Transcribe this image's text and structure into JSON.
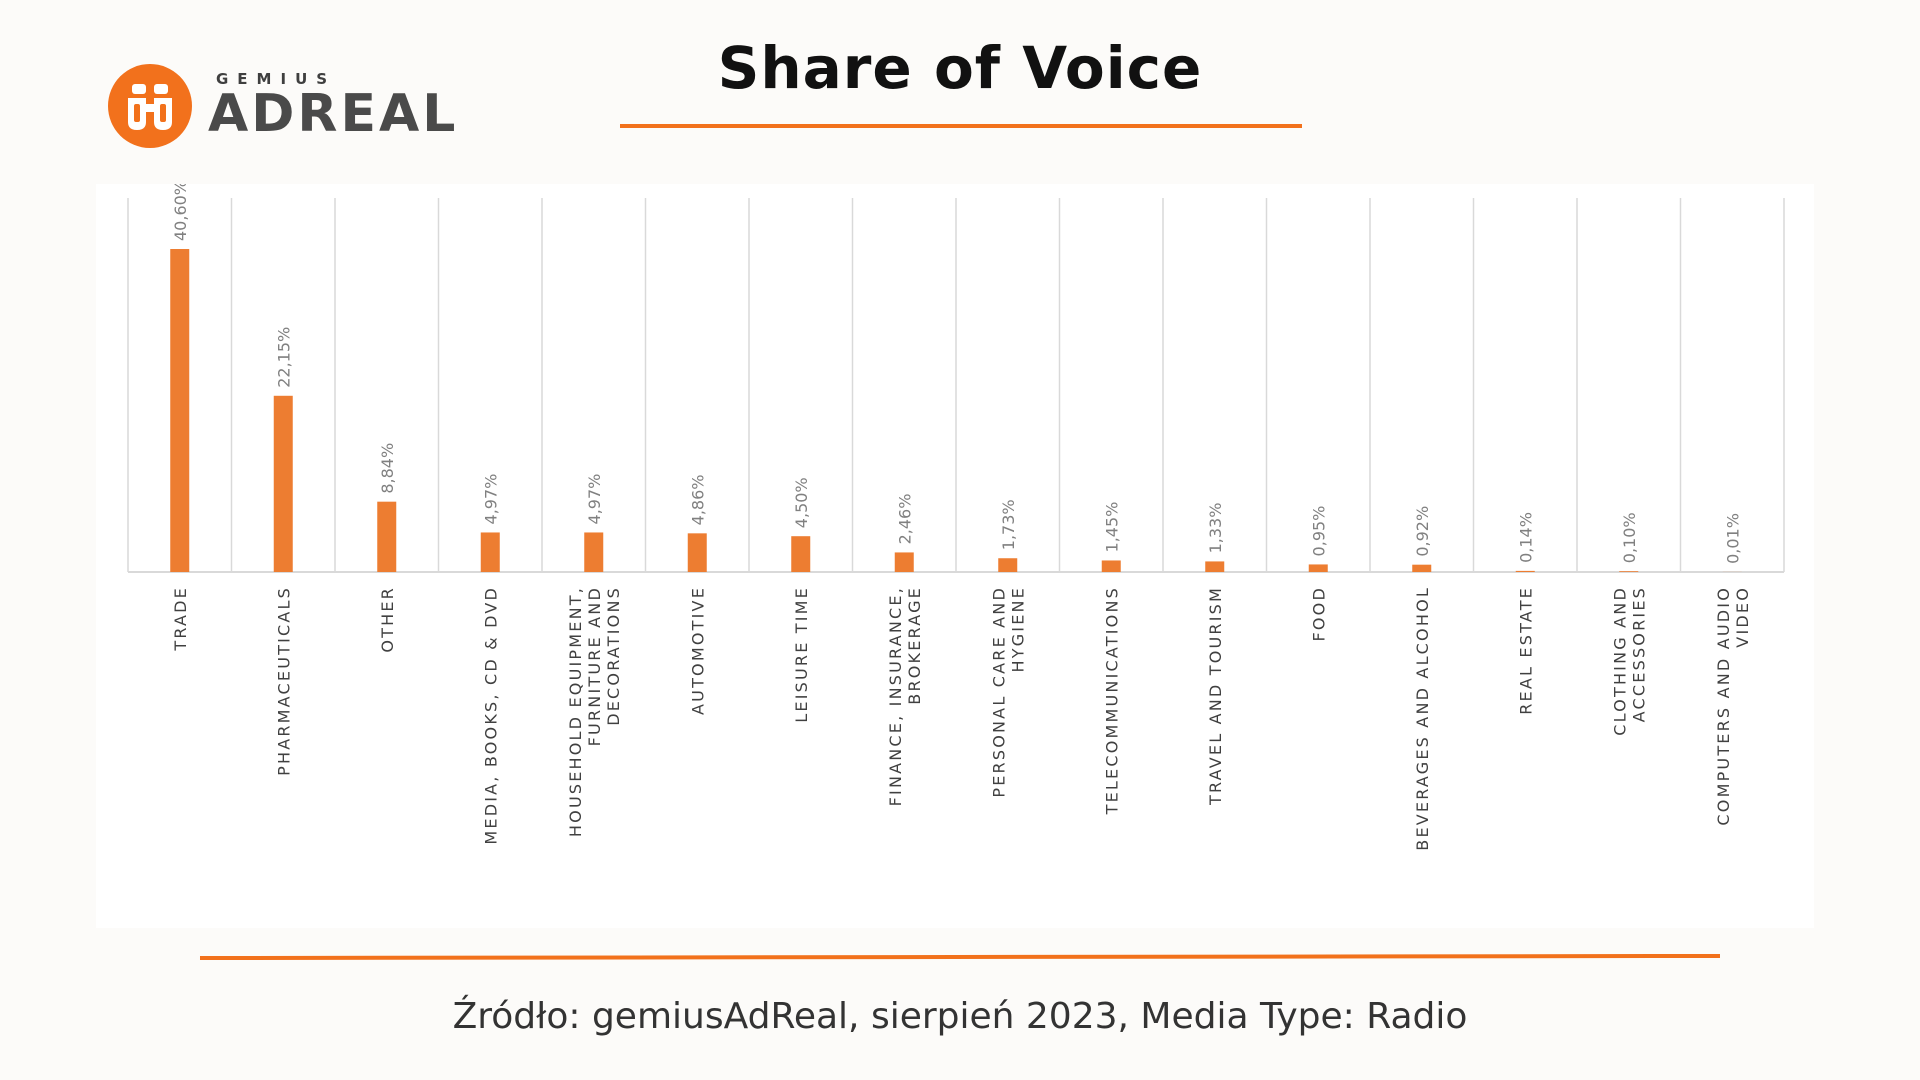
{
  "logo": {
    "sub": "GEMIUS",
    "main": "ADREAL",
    "icon": "binoculars-icon",
    "color": "#f2711c"
  },
  "title": "Share of Voice",
  "source": "Źródło: gemiusAdReal, sierpień 2023, Media Type: Radio",
  "colors": {
    "accent": "#f2711c",
    "bar": "#ed7d31",
    "label": "#808080",
    "grid": "#d9d9d9"
  },
  "chart_data": {
    "type": "bar",
    "title": "Share of Voice",
    "xlabel": "",
    "ylabel": "",
    "ylim": [
      0,
      45
    ],
    "grid": true,
    "legend": "none",
    "categories": [
      "TRADE",
      "PHARMACEUTICALS",
      "OTHER",
      "MEDIA, BOOKS, CD & DVD",
      "HOUSEHOLD EQUIPMENT, FURNITURE AND DECORATIONS",
      "AUTOMOTIVE",
      "LEISURE TIME",
      "FINANCE, INSURANCE, BROKERAGE",
      "PERSONAL CARE AND HYGIENE",
      "TELECOMMUNICATIONS",
      "TRAVEL AND TOURISM",
      "FOOD",
      "BEVERAGES AND ALCOHOL",
      "REAL ESTATE",
      "CLOTHING AND ACCESSORIES",
      "COMPUTERS AND AUDIO VIDEO"
    ],
    "category_lines": [
      [
        "TRADE"
      ],
      [
        "PHARMACEUTICALS"
      ],
      [
        "OTHER"
      ],
      [
        "MEDIA, BOOKS, CD & DVD"
      ],
      [
        "HOUSEHOLD EQUIPMENT,",
        "FURNITURE AND",
        "DECORATIONS"
      ],
      [
        "AUTOMOTIVE"
      ],
      [
        "LEISURE TIME"
      ],
      [
        "FINANCE, INSURANCE,",
        "BROKERAGE"
      ],
      [
        "PERSONAL CARE AND",
        "HYGIENE"
      ],
      [
        "TELECOMMUNICATIONS"
      ],
      [
        "TRAVEL AND TOURISM"
      ],
      [
        "FOOD"
      ],
      [
        "BEVERAGES AND ALCOHOL"
      ],
      [
        "REAL ESTATE"
      ],
      [
        "CLOTHING AND",
        "ACCESSORIES"
      ],
      [
        "COMPUTERS AND AUDIO",
        "VIDEO"
      ]
    ],
    "values": [
      40.6,
      22.15,
      8.84,
      4.97,
      4.97,
      4.86,
      4.5,
      2.46,
      1.73,
      1.45,
      1.33,
      0.95,
      0.92,
      0.14,
      0.1,
      0.01
    ],
    "data_labels": [
      "40,60%",
      "22,15%",
      "8,84%",
      "4,97%",
      "4,97%",
      "4,86%",
      "4,50%",
      "2,46%",
      "1,73%",
      "1,45%",
      "1,33%",
      "0,95%",
      "0,92%",
      "0,14%",
      "0,10%",
      "0,01%"
    ]
  }
}
